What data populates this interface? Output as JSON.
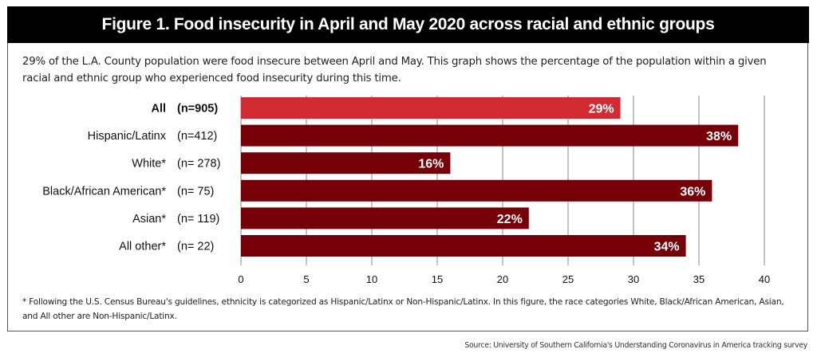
{
  "title": "Figure 1. Food insecurity in April and May 2020 across racial and ethnic groups",
  "subtitle": "29% of the L.A. County population were food insecure between April and May. This graph shows the percentage of the population within a given racial and ethnic group who experienced food insecurity during this time.",
  "footnote": "* Following the U.S. Census Bureau's guidelines, ethnicity is categorized as Hispanic/Latinx or Non-Hispanic/Latinx. In this figure, the race categories White, Black/African American, Asian, and All other are Non-Hispanic/Latinx.",
  "source": "Source: University of Southern California's Understanding Coronavirus in America tracking survey",
  "colors": {
    "highlight_bar": "#d12a33",
    "bar": "#760008",
    "gridline": "#888888",
    "title_bg": "#000000"
  },
  "chart_data": {
    "type": "bar",
    "orientation": "horizontal",
    "title": "Figure 1. Food insecurity in April and May 2020 across racial and ethnic groups",
    "xlabel": "",
    "ylabel": "",
    "xlim": [
      0,
      40
    ],
    "xticks": [
      0,
      5,
      10,
      15,
      20,
      25,
      30,
      35,
      40
    ],
    "grid": true,
    "categories": [
      "All",
      "Hispanic/Latinx",
      "White*",
      "Black/African American*",
      "Asian*",
      "All other*"
    ],
    "sample_sizes": [
      "(n=905)",
      "(n=412)",
      "(n= 278)",
      "(n= 75)",
      "(n= 119)",
      "(n= 22)"
    ],
    "values": [
      29,
      38,
      16,
      36,
      22,
      34
    ],
    "value_labels": [
      "29%",
      "38%",
      "16%",
      "36%",
      "22%",
      "34%"
    ],
    "highlighted": [
      true,
      false,
      false,
      false,
      false,
      false
    ]
  }
}
